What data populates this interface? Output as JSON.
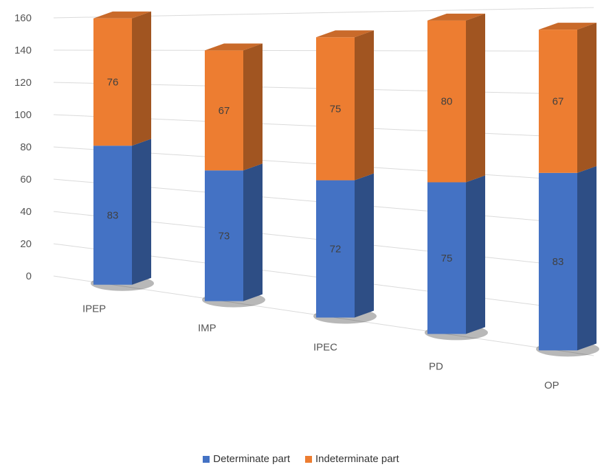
{
  "chart_data": {
    "type": "bar",
    "stacked": true,
    "three_d": true,
    "categories": [
      "IPEP",
      "IMP",
      "IPEC",
      "PD",
      "OP"
    ],
    "series": [
      {
        "name": "Determinate part",
        "values": [
          83,
          73,
          72,
          75,
          83
        ],
        "color": "#4472C4"
      },
      {
        "name": "Indeterminate part",
        "values": [
          76,
          67,
          75,
          80,
          67
        ],
        "color": "#ED7D31"
      }
    ],
    "ylim": [
      0,
      160
    ],
    "yticks": [
      0,
      20,
      40,
      60,
      80,
      100,
      120,
      140,
      160
    ],
    "data_labels": true,
    "grid": true,
    "legend_position": "bottom"
  }
}
